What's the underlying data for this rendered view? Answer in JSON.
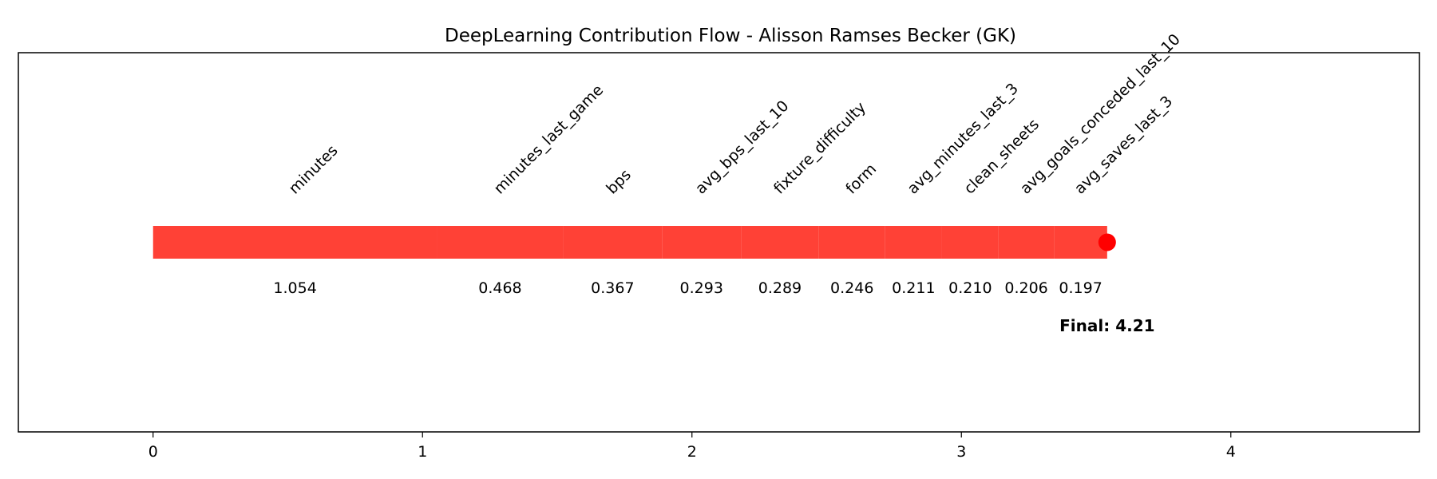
{
  "chart_data": {
    "type": "bar",
    "orientation": "horizontal-cumulative",
    "title": "DeepLearning Contribution Flow - Alisson Ramses Becker (GK)",
    "xlabel": "",
    "ylabel": "",
    "xlim": [
      -0.5,
      4.7
    ],
    "xticks": [
      "0",
      "1",
      "2",
      "3",
      "4"
    ],
    "grid": false,
    "bar_color": "#ff4136",
    "endpoint_color": "#ff0000",
    "features": [
      {
        "name": "minutes",
        "value": 1.054,
        "value_label": "1.054"
      },
      {
        "name": "minutes_last_game",
        "value": 0.468,
        "value_label": "0.468"
      },
      {
        "name": "bps",
        "value": 0.367,
        "value_label": "0.367"
      },
      {
        "name": "avg_bps_last_10",
        "value": 0.293,
        "value_label": "0.293"
      },
      {
        "name": "fixture_difficulty",
        "value": 0.289,
        "value_label": "0.289"
      },
      {
        "name": "form",
        "value": 0.246,
        "value_label": "0.246"
      },
      {
        "name": "avg_minutes_last_3",
        "value": 0.211,
        "value_label": "0.211"
      },
      {
        "name": "clean_sheets",
        "value": 0.21,
        "value_label": "0.210"
      },
      {
        "name": "avg_goals_conceded_last_10",
        "value": 0.206,
        "value_label": "0.206"
      },
      {
        "name": "avg_saves_last_3",
        "value": 0.197,
        "value_label": "0.197"
      }
    ],
    "final_label": "Final: 4.21"
  }
}
